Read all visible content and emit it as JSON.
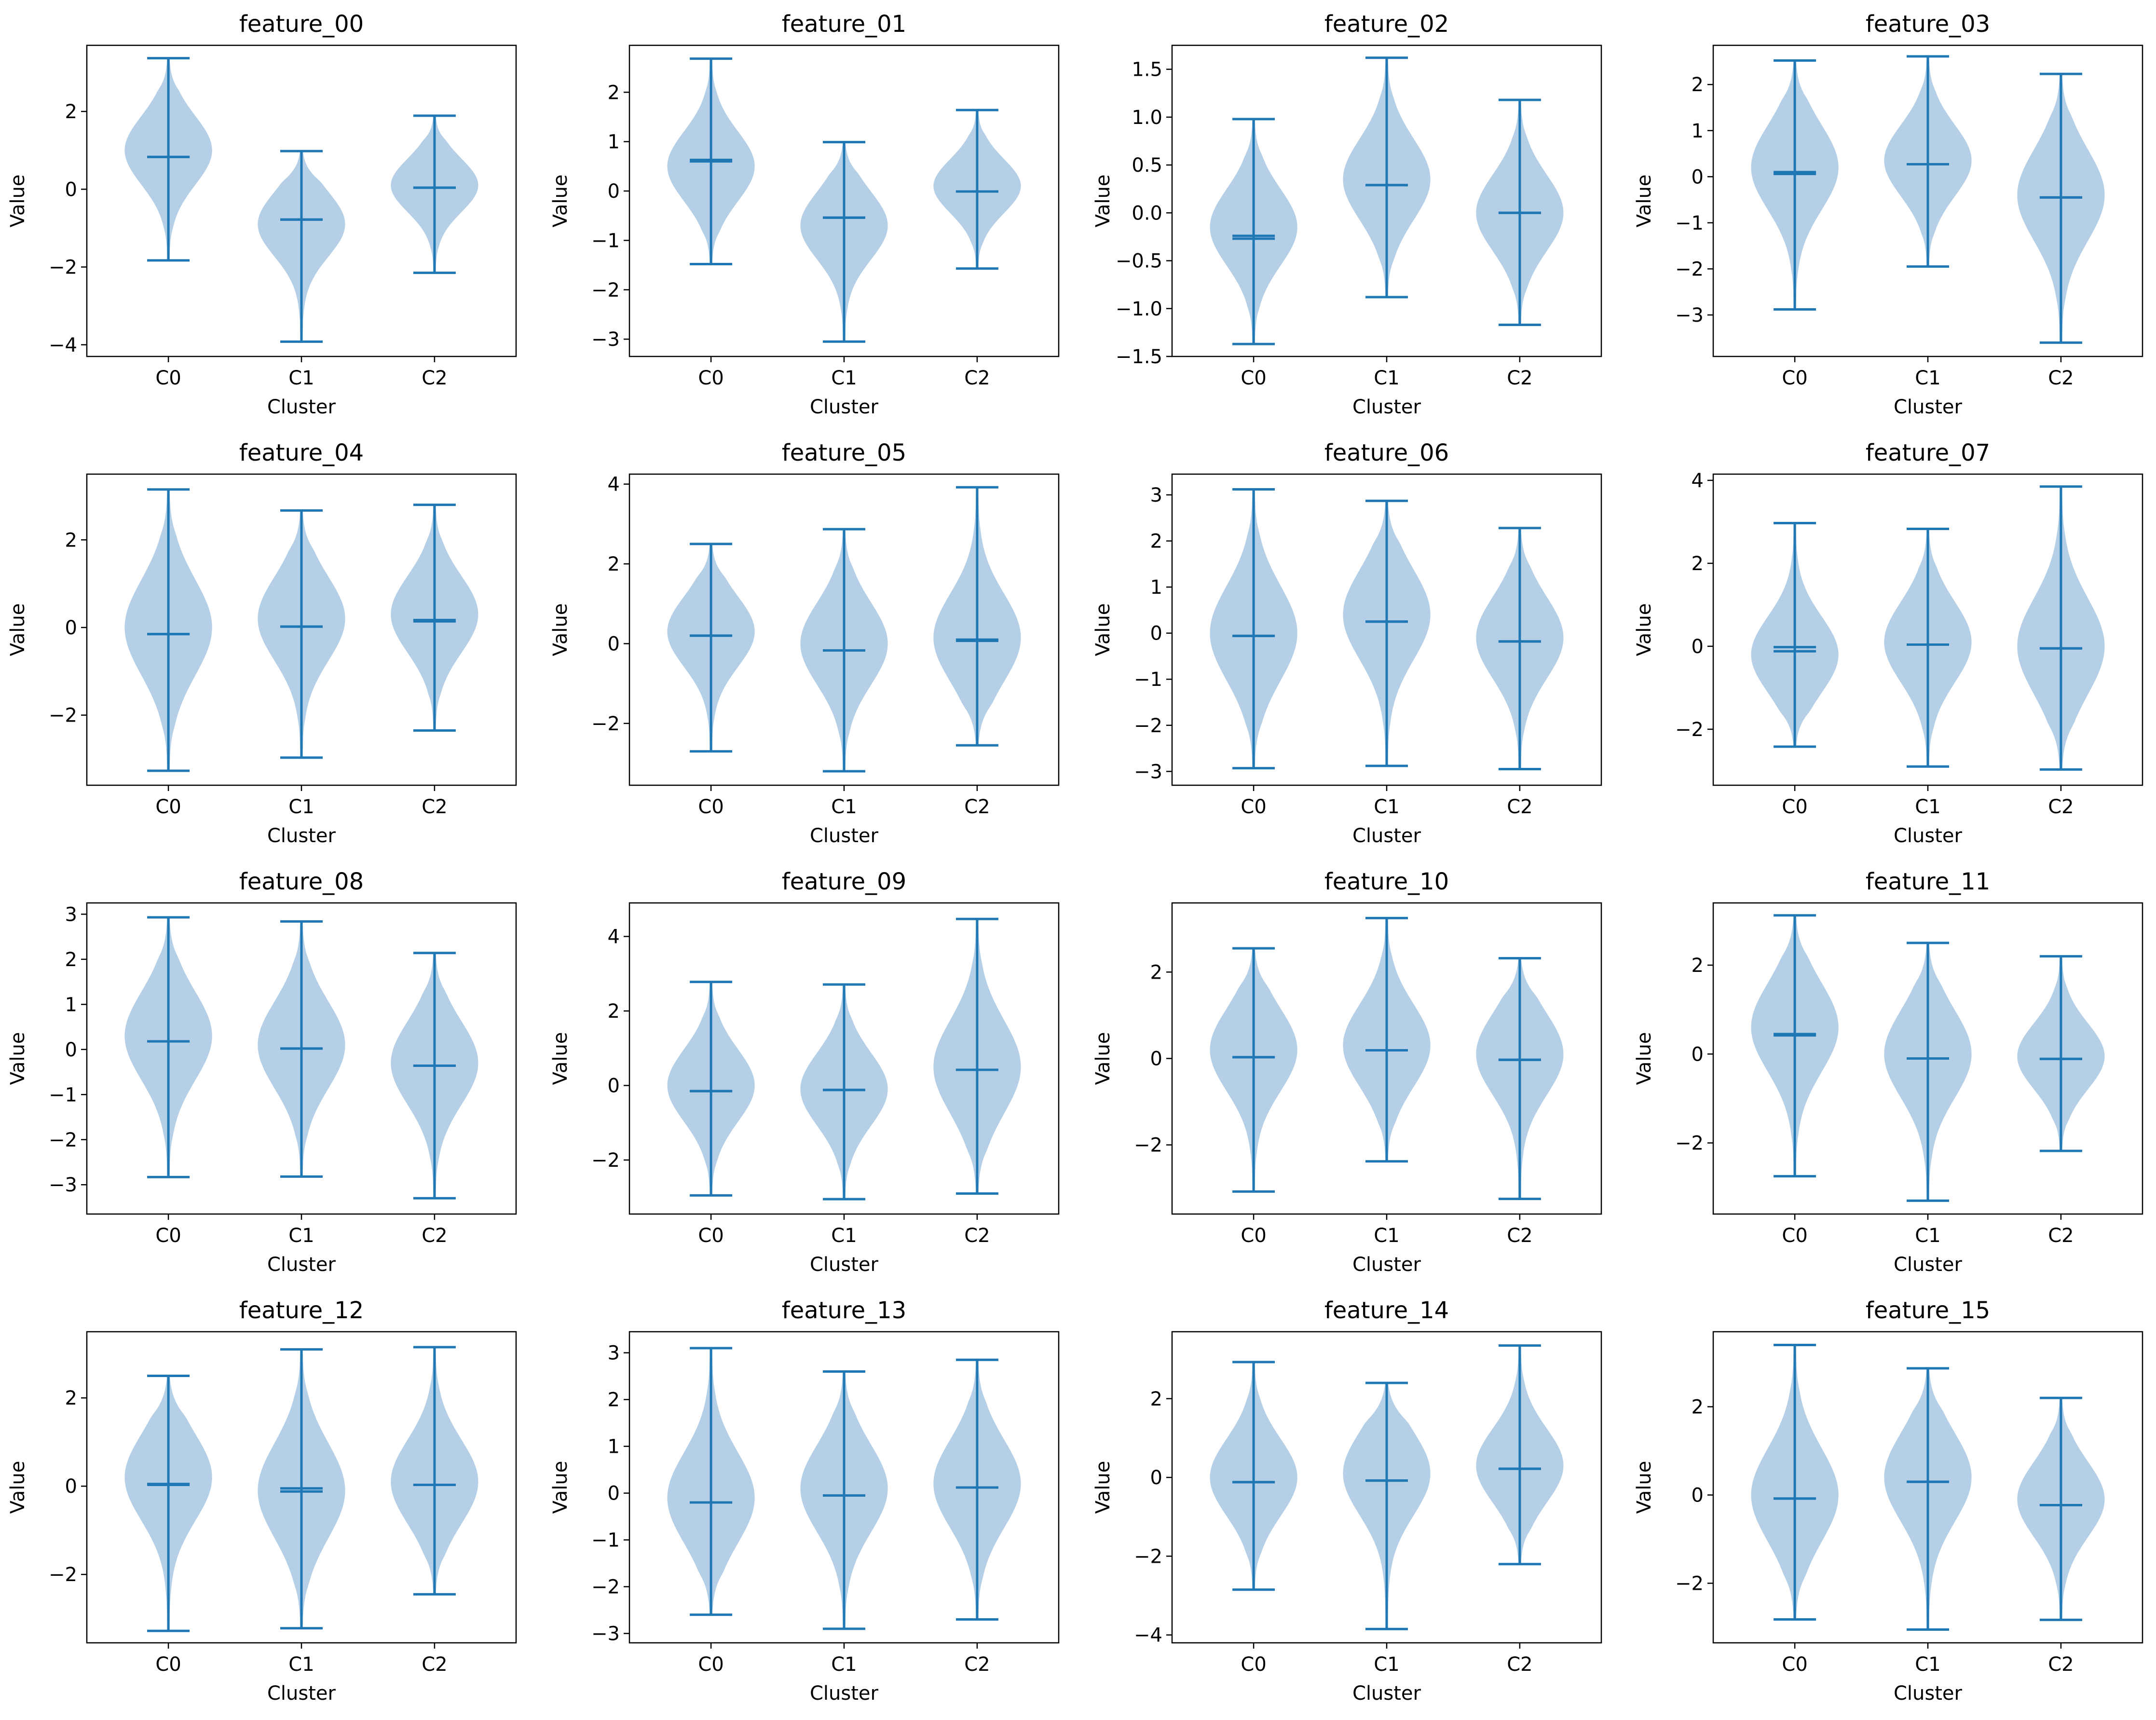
{
  "chart_data": [
    {
      "type": "violin",
      "title": "feature_00",
      "xlabel": "Cluster",
      "ylabel": "Value",
      "categories": [
        "C0",
        "C1",
        "C2"
      ],
      "ylim": [
        -4.3,
        3.7
      ],
      "yticks": [
        -4,
        -2,
        0,
        2
      ],
      "series": [
        {
          "min": -1.83,
          "max": 3.37,
          "mean": 0.83,
          "median": 0.83,
          "mode": 1.0
        },
        {
          "min": -3.92,
          "max": 0.98,
          "mean": -0.78,
          "median": -0.78,
          "mode": -0.9
        },
        {
          "min": -2.15,
          "max": 1.89,
          "mean": 0.04,
          "median": 0.04,
          "mode": 0.1
        }
      ]
    },
    {
      "type": "violin",
      "title": "feature_01",
      "xlabel": "Cluster",
      "ylabel": "Value",
      "categories": [
        "C0",
        "C1",
        "C2"
      ],
      "ylim": [
        -3.35,
        2.95
      ],
      "yticks": [
        -3,
        -2,
        -1,
        0,
        1,
        2
      ],
      "series": [
        {
          "min": -1.48,
          "max": 2.68,
          "mean": 0.63,
          "median": 0.6,
          "mode": 0.5
        },
        {
          "min": -3.05,
          "max": 0.99,
          "mean": -0.54,
          "median": -0.54,
          "mode": -0.7
        },
        {
          "min": -1.57,
          "max": 1.64,
          "mean": -0.01,
          "median": -0.01,
          "mode": 0.1
        }
      ]
    },
    {
      "type": "violin",
      "title": "feature_02",
      "xlabel": "Cluster",
      "ylabel": "Value",
      "categories": [
        "C0",
        "C1",
        "C2"
      ],
      "ylim": [
        -1.5,
        1.75
      ],
      "yticks": [
        -1.5,
        -1.0,
        -0.5,
        0.0,
        0.5,
        1.0,
        1.5
      ],
      "series": [
        {
          "min": -1.37,
          "max": 0.98,
          "mean": -0.24,
          "median": -0.27,
          "mode": -0.15
        },
        {
          "min": -0.88,
          "max": 1.62,
          "mean": 0.29,
          "median": 0.29,
          "mode": 0.35
        },
        {
          "min": -1.17,
          "max": 1.18,
          "mean": 0.0,
          "median": 0.0,
          "mode": 0.0
        }
      ]
    },
    {
      "type": "violin",
      "title": "feature_03",
      "xlabel": "Cluster",
      "ylabel": "Value",
      "categories": [
        "C0",
        "C1",
        "C2"
      ],
      "ylim": [
        -3.9,
        2.85
      ],
      "yticks": [
        -3,
        -2,
        -1,
        0,
        1,
        2
      ],
      "series": [
        {
          "min": -2.88,
          "max": 2.52,
          "mean": 0.1,
          "median": 0.06,
          "mode": 0.2
        },
        {
          "min": -1.95,
          "max": 2.61,
          "mean": 0.27,
          "median": 0.27,
          "mode": 0.35
        },
        {
          "min": -3.6,
          "max": 2.23,
          "mean": -0.45,
          "median": -0.45,
          "mode": -0.4
        }
      ]
    },
    {
      "type": "violin",
      "title": "feature_04",
      "xlabel": "Cluster",
      "ylabel": "Value",
      "categories": [
        "C0",
        "C1",
        "C2"
      ],
      "ylim": [
        -3.6,
        3.5
      ],
      "yticks": [
        -2,
        0,
        2
      ],
      "series": [
        {
          "min": -3.27,
          "max": 3.15,
          "mean": -0.15,
          "median": -0.15,
          "mode": 0.0
        },
        {
          "min": -2.97,
          "max": 2.67,
          "mean": 0.02,
          "median": 0.02,
          "mode": 0.2
        },
        {
          "min": -2.35,
          "max": 2.8,
          "mean": 0.17,
          "median": 0.14,
          "mode": 0.3
        }
      ]
    },
    {
      "type": "violin",
      "title": "feature_05",
      "xlabel": "Cluster",
      "ylabel": "Value",
      "categories": [
        "C0",
        "C1",
        "C2"
      ],
      "ylim": [
        -3.55,
        4.25
      ],
      "yticks": [
        -2,
        0,
        2,
        4
      ],
      "series": [
        {
          "min": -2.7,
          "max": 2.5,
          "mean": 0.2,
          "median": 0.2,
          "mode": 0.3
        },
        {
          "min": -3.2,
          "max": 2.87,
          "mean": -0.17,
          "median": -0.17,
          "mode": 0.0
        },
        {
          "min": -2.55,
          "max": 3.92,
          "mean": 0.1,
          "median": 0.07,
          "mode": 0.15
        }
      ]
    },
    {
      "type": "violin",
      "title": "feature_06",
      "xlabel": "Cluster",
      "ylabel": "Value",
      "categories": [
        "C0",
        "C1",
        "C2"
      ],
      "ylim": [
        -3.3,
        3.45
      ],
      "yticks": [
        -3,
        -2,
        -1,
        0,
        1,
        2,
        3
      ],
      "series": [
        {
          "min": -2.93,
          "max": 3.12,
          "mean": -0.06,
          "median": -0.06,
          "mode": 0.0
        },
        {
          "min": -2.88,
          "max": 2.87,
          "mean": 0.25,
          "median": 0.25,
          "mode": 0.4
        },
        {
          "min": -2.95,
          "max": 2.28,
          "mean": -0.18,
          "median": -0.18,
          "mode": -0.1
        }
      ]
    },
    {
      "type": "violin",
      "title": "feature_07",
      "xlabel": "Cluster",
      "ylabel": "Value",
      "categories": [
        "C0",
        "C1",
        "C2"
      ],
      "ylim": [
        -3.35,
        4.15
      ],
      "yticks": [
        -2,
        0,
        2,
        4
      ],
      "series": [
        {
          "min": -2.42,
          "max": 2.97,
          "mean": -0.02,
          "median": -0.12,
          "mode": -0.2
        },
        {
          "min": -2.9,
          "max": 2.83,
          "mean": 0.04,
          "median": 0.04,
          "mode": 0.1
        },
        {
          "min": -2.97,
          "max": 3.85,
          "mean": -0.05,
          "median": -0.05,
          "mode": 0.0
        }
      ]
    },
    {
      "type": "violin",
      "title": "feature_08",
      "xlabel": "Cluster",
      "ylabel": "Value",
      "categories": [
        "C0",
        "C1",
        "C2"
      ],
      "ylim": [
        -3.65,
        3.25
      ],
      "yticks": [
        -3,
        -2,
        -1,
        0,
        1,
        2,
        3
      ],
      "series": [
        {
          "min": -2.83,
          "max": 2.93,
          "mean": 0.18,
          "median": 0.18,
          "mode": 0.3
        },
        {
          "min": -2.82,
          "max": 2.84,
          "mean": 0.02,
          "median": 0.02,
          "mode": 0.1
        },
        {
          "min": -3.3,
          "max": 2.14,
          "mean": -0.36,
          "median": -0.36,
          "mode": -0.3
        }
      ]
    },
    {
      "type": "violin",
      "title": "feature_09",
      "xlabel": "Cluster",
      "ylabel": "Value",
      "categories": [
        "C0",
        "C1",
        "C2"
      ],
      "ylim": [
        -3.45,
        4.9
      ],
      "yticks": [
        -2,
        0,
        2,
        4
      ],
      "series": [
        {
          "min": -2.95,
          "max": 2.78,
          "mean": -0.15,
          "median": -0.15,
          "mode": 0.0
        },
        {
          "min": -3.05,
          "max": 2.71,
          "mean": -0.12,
          "median": -0.12,
          "mode": -0.1
        },
        {
          "min": -2.9,
          "max": 4.47,
          "mean": 0.42,
          "median": 0.42,
          "mode": 0.5
        }
      ]
    },
    {
      "type": "violin",
      "title": "feature_10",
      "xlabel": "Cluster",
      "ylabel": "Value",
      "categories": [
        "C0",
        "C1",
        "C2"
      ],
      "ylim": [
        -3.6,
        3.6
      ],
      "yticks": [
        -2,
        0,
        2
      ],
      "series": [
        {
          "min": -3.08,
          "max": 2.55,
          "mean": 0.03,
          "median": 0.03,
          "mode": 0.2
        },
        {
          "min": -2.38,
          "max": 3.25,
          "mean": 0.19,
          "median": 0.19,
          "mode": 0.3
        },
        {
          "min": -3.25,
          "max": 2.32,
          "mean": -0.03,
          "median": -0.03,
          "mode": 0.1
        }
      ]
    },
    {
      "type": "violin",
      "title": "feature_11",
      "xlabel": "Cluster",
      "ylabel": "Value",
      "categories": [
        "C0",
        "C1",
        "C2"
      ],
      "ylim": [
        -3.6,
        3.4
      ],
      "yticks": [
        -2,
        0,
        2
      ],
      "series": [
        {
          "min": -2.75,
          "max": 3.12,
          "mean": 0.45,
          "median": 0.42,
          "mode": 0.6
        },
        {
          "min": -3.3,
          "max": 2.5,
          "mean": -0.1,
          "median": -0.1,
          "mode": 0.0
        },
        {
          "min": -2.18,
          "max": 2.2,
          "mean": -0.11,
          "median": -0.11,
          "mode": -0.05
        }
      ]
    },
    {
      "type": "violin",
      "title": "feature_12",
      "xlabel": "Cluster",
      "ylabel": "Value",
      "categories": [
        "C0",
        "C1",
        "C2"
      ],
      "ylim": [
        -3.55,
        3.5
      ],
      "yticks": [
        -2,
        0,
        2
      ],
      "series": [
        {
          "min": -3.28,
          "max": 2.5,
          "mean": 0.05,
          "median": 0.03,
          "mode": 0.2
        },
        {
          "min": -3.22,
          "max": 3.1,
          "mean": -0.05,
          "median": -0.12,
          "mode": -0.1
        },
        {
          "min": -2.45,
          "max": 3.15,
          "mean": 0.03,
          "median": 0.03,
          "mode": 0.1
        }
      ]
    },
    {
      "type": "violin",
      "title": "feature_13",
      "xlabel": "Cluster",
      "ylabel": "Value",
      "categories": [
        "C0",
        "C1",
        "C2"
      ],
      "ylim": [
        -3.2,
        3.45
      ],
      "yticks": [
        -3,
        -2,
        -1,
        0,
        1,
        2,
        3
      ],
      "series": [
        {
          "min": -2.6,
          "max": 3.1,
          "mean": -0.2,
          "median": -0.2,
          "mode": -0.1
        },
        {
          "min": -2.9,
          "max": 2.6,
          "mean": -0.05,
          "median": -0.05,
          "mode": 0.1
        },
        {
          "min": -2.7,
          "max": 2.85,
          "mean": 0.12,
          "median": 0.12,
          "mode": 0.2
        }
      ]
    },
    {
      "type": "violin",
      "title": "feature_14",
      "xlabel": "Cluster",
      "ylabel": "Value",
      "categories": [
        "C0",
        "C1",
        "C2"
      ],
      "ylim": [
        -4.2,
        3.7
      ],
      "yticks": [
        -4,
        -2,
        0,
        2
      ],
      "series": [
        {
          "min": -2.85,
          "max": 2.93,
          "mean": -0.12,
          "median": -0.12,
          "mode": 0.0
        },
        {
          "min": -3.85,
          "max": 2.4,
          "mean": -0.08,
          "median": -0.08,
          "mode": 0.1
        },
        {
          "min": -2.2,
          "max": 3.35,
          "mean": 0.22,
          "median": 0.22,
          "mode": 0.3
        }
      ]
    },
    {
      "type": "violin",
      "title": "feature_15",
      "xlabel": "Cluster",
      "ylabel": "Value",
      "categories": [
        "C0",
        "C1",
        "C2"
      ],
      "ylim": [
        -3.35,
        3.7
      ],
      "yticks": [
        -2,
        0,
        2
      ],
      "series": [
        {
          "min": -2.82,
          "max": 3.4,
          "mean": -0.08,
          "median": -0.08,
          "mode": 0.0
        },
        {
          "min": -3.05,
          "max": 2.87,
          "mean": 0.3,
          "median": 0.3,
          "mode": 0.4
        },
        {
          "min": -2.83,
          "max": 2.2,
          "mean": -0.23,
          "median": -0.23,
          "mode": -0.1
        }
      ]
    }
  ],
  "colors": {
    "body": "#b4cfe6",
    "line": "#1f77b4",
    "axis": "#000000"
  }
}
